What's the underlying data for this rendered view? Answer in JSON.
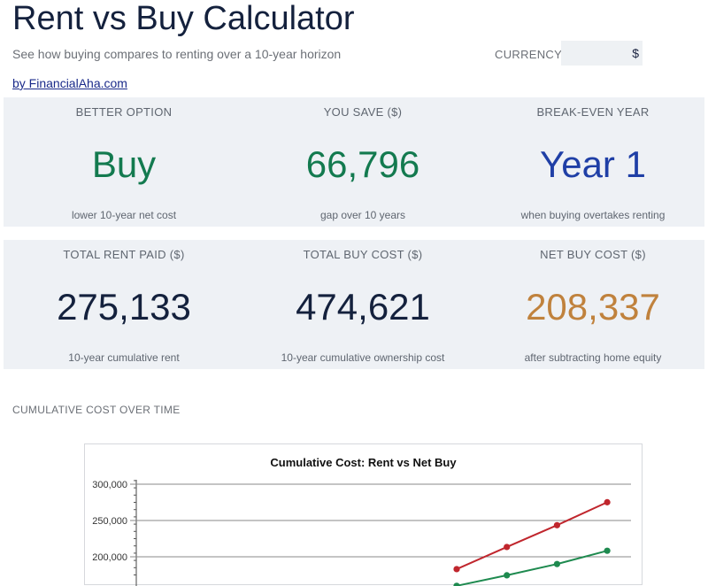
{
  "header": {
    "title": "Rent vs Buy Calculator",
    "subtitle": "See how buying compares to renting over a 10-year horizon",
    "byline": "by FinancialAha.com",
    "currency_label": "CURRENCY",
    "currency_value": "$"
  },
  "summary": [
    {
      "label": "BETTER OPTION",
      "value": "Buy",
      "note": "lower 10-year net cost",
      "color": "#137a4f"
    },
    {
      "label": "YOU SAVE ($)",
      "value": "66,796",
      "note": "gap over 10 years",
      "color": "#137a4f"
    },
    {
      "label": "BREAK-EVEN YEAR",
      "value": "Year 1",
      "note": "when buying overtakes renting",
      "color": "#1f3fa6"
    }
  ],
  "totals": [
    {
      "label": "TOTAL RENT PAID ($)",
      "value": "275,133",
      "note": "10-year cumulative rent",
      "color": "#14213d"
    },
    {
      "label": "TOTAL BUY COST ($)",
      "value": "474,621",
      "note": "10-year cumulative ownership cost",
      "color": "#14213d"
    },
    {
      "label": "NET BUY COST ($)",
      "value": "208,337",
      "note": "after subtracting home equity",
      "color": "#c0823d"
    }
  ],
  "section": {
    "title": "CUMULATIVE COST OVER TIME"
  },
  "chart_data": {
    "type": "line",
    "title": "Cumulative Cost: Rent vs Net Buy",
    "ytick_labels": [
      "300,000",
      "250,000",
      "200,000"
    ],
    "ytick_values": [
      300000,
      250000,
      200000
    ],
    "ylim_visible": [
      175000,
      305000
    ],
    "x": [
      7,
      8,
      9,
      10
    ],
    "series": [
      {
        "color": "#c0262d",
        "values": [
          183000,
          213500,
          243500,
          275133
        ]
      },
      {
        "color": "#1e8a4f",
        "values": [
          160000,
          174500,
          190000,
          208337
        ]
      }
    ]
  }
}
